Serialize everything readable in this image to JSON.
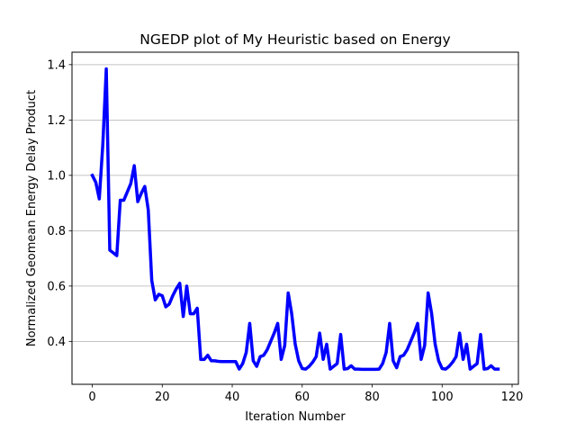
{
  "chart_data": {
    "type": "line",
    "title": "NGEDP plot of My Heuristic based on Energy",
    "xlabel": "Iteration Number",
    "ylabel": "Normalized Geomean Energy Delay Product",
    "xlim": [
      -5.8,
      121.8
    ],
    "ylim": [
      0.245,
      1.445
    ],
    "xticks": [
      0,
      20,
      40,
      60,
      80,
      100,
      120
    ],
    "xtick_labels": [
      "0",
      "20",
      "40",
      "60",
      "80",
      "100",
      "120"
    ],
    "yticks": [
      0.4,
      0.6,
      0.8,
      1.0,
      1.2,
      1.4
    ],
    "ytick_labels": [
      "0.4",
      "0.6",
      "0.8",
      "1.0",
      "1.2",
      "1.4"
    ],
    "grid": "horizontal",
    "line_color": "#0000ff",
    "series": [
      {
        "x": [
          0,
          1,
          2,
          3,
          4,
          5,
          6,
          7,
          8,
          9,
          10,
          11,
          12,
          13,
          14,
          15,
          16,
          17,
          18,
          19,
          20,
          21,
          22,
          23,
          24,
          25,
          26,
          27,
          28,
          29,
          30,
          31,
          32,
          33,
          34,
          35,
          36,
          37,
          38,
          39,
          40,
          41,
          42,
          43,
          44,
          45,
          46,
          47,
          48,
          49,
          50,
          51,
          52,
          53,
          54,
          55,
          56,
          57,
          58,
          59,
          60,
          61,
          62,
          63,
          64,
          65,
          66,
          67,
          68,
          69,
          70,
          71,
          72,
          73,
          74,
          75,
          76,
          77,
          78,
          79,
          80,
          81,
          82,
          83,
          84,
          85,
          86,
          87,
          88,
          89,
          90,
          91,
          92,
          93,
          94,
          95,
          96,
          97,
          98,
          99,
          100,
          101,
          102,
          103,
          104,
          105,
          106,
          107,
          108,
          109,
          110,
          111,
          112,
          113,
          114,
          115,
          116
        ],
        "values": [
          1.0,
          0.975,
          0.915,
          1.11,
          1.385,
          0.73,
          0.72,
          0.71,
          0.91,
          0.91,
          0.94,
          0.97,
          1.035,
          0.905,
          0.935,
          0.96,
          0.875,
          0.62,
          0.55,
          0.57,
          0.565,
          0.525,
          0.535,
          0.565,
          0.59,
          0.61,
          0.49,
          0.6,
          0.5,
          0.5,
          0.52,
          0.335,
          0.335,
          0.35,
          0.33,
          0.33,
          0.328,
          0.327,
          0.327,
          0.327,
          0.327,
          0.327,
          0.3,
          0.32,
          0.36,
          0.465,
          0.33,
          0.31,
          0.345,
          0.35,
          0.37,
          0.4,
          0.43,
          0.465,
          0.335,
          0.385,
          0.575,
          0.5,
          0.39,
          0.33,
          0.302,
          0.3,
          0.31,
          0.325,
          0.345,
          0.43,
          0.335,
          0.39,
          0.3,
          0.31,
          0.32,
          0.425,
          0.3,
          0.302,
          0.312,
          0.3,
          0.3,
          0.299,
          0.299,
          0.299,
          0.299,
          0.299,
          0.3,
          0.32,
          0.36,
          0.465,
          0.33,
          0.305,
          0.345,
          0.35,
          0.37,
          0.4,
          0.43,
          0.465,
          0.335,
          0.385,
          0.575,
          0.5,
          0.39,
          0.33,
          0.302,
          0.3,
          0.31,
          0.325,
          0.345,
          0.43,
          0.335,
          0.39,
          0.3,
          0.31,
          0.32,
          0.425,
          0.3,
          0.302,
          0.312,
          0.3,
          0.3
        ]
      }
    ]
  }
}
